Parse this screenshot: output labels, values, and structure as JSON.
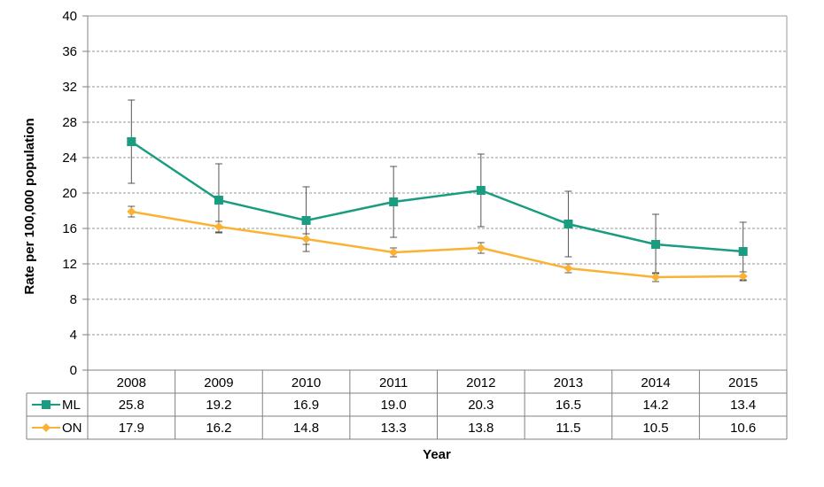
{
  "chart_data": {
    "type": "line",
    "title": "",
    "xlabel": "Year",
    "ylabel": "Rate per 100,000 population",
    "ylim": [
      0,
      40
    ],
    "yticks": [
      0,
      4,
      8,
      12,
      16,
      20,
      24,
      28,
      32,
      36,
      40
    ],
    "grid": true,
    "grid_style": "dashed horizontal",
    "categories": [
      "2008",
      "2009",
      "2010",
      "2011",
      "2012",
      "2013",
      "2014",
      "2015"
    ],
    "series": [
      {
        "name": "ML",
        "color": "#1a9c80",
        "marker": "square",
        "values": [
          25.8,
          19.2,
          16.9,
          19.0,
          20.3,
          16.5,
          14.2,
          13.4
        ],
        "labels": [
          "25.8",
          "19.2",
          "16.9",
          "19.0",
          "20.3",
          "16.5",
          "14.2",
          "13.4"
        ],
        "error_low": [
          21.1,
          15.5,
          13.4,
          15.0,
          16.2,
          12.8,
          10.9,
          10.2
        ],
        "error_high": [
          30.5,
          23.3,
          20.7,
          23.0,
          24.4,
          20.2,
          17.6,
          16.7
        ]
      },
      {
        "name": "ON",
        "color": "#f9b233",
        "marker": "diamond",
        "values": [
          17.9,
          16.2,
          14.8,
          13.3,
          13.8,
          11.5,
          10.5,
          10.6
        ],
        "labels": [
          "17.9",
          "16.2",
          "14.8",
          "13.3",
          "13.8",
          "11.5",
          "10.5",
          "10.6"
        ],
        "error_low": [
          17.3,
          15.6,
          14.2,
          12.8,
          13.2,
          11.0,
          10.0,
          10.1
        ],
        "error_high": [
          18.5,
          16.8,
          15.4,
          13.8,
          14.4,
          12.0,
          11.0,
          11.1
        ]
      }
    ],
    "legend": "data table below x-axis"
  }
}
